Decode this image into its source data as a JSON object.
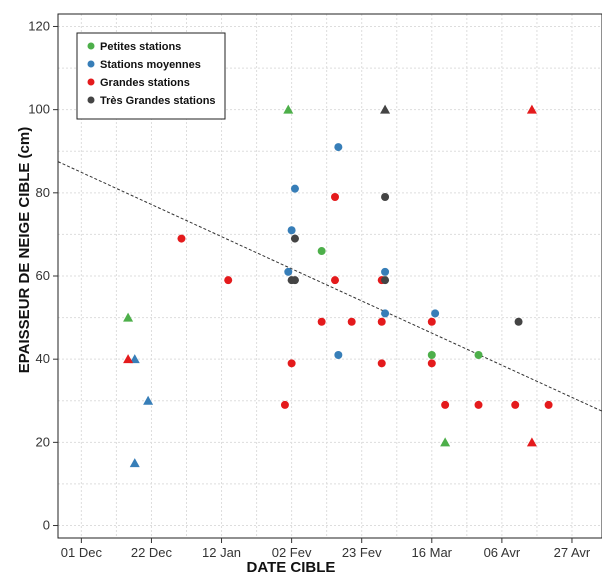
{
  "chart_data": {
    "type": "scatter",
    "xlabel": "DATE CIBLE",
    "ylabel": "EPAISSEUR DE NEIGE CIBLE (cm)",
    "ylim": [
      -3,
      123
    ],
    "xlim": [
      "2020-11-24",
      "2021-05-06"
    ],
    "grid": true,
    "legend_position": "top-left",
    "x_ticks": [
      {
        "date": "2020-12-01",
        "label": "01 Dec"
      },
      {
        "date": "2020-12-22",
        "label": "22 Dec"
      },
      {
        "date": "2021-01-12",
        "label": "12 Jan"
      },
      {
        "date": "2021-02-02",
        "label": "02 Fev"
      },
      {
        "date": "2021-02-23",
        "label": "23 Fev"
      },
      {
        "date": "2021-03-16",
        "label": "16 Mar"
      },
      {
        "date": "2021-04-06",
        "label": "06 Avr"
      },
      {
        "date": "2021-04-27",
        "label": "27 Avr"
      }
    ],
    "y_ticks": [
      0,
      20,
      40,
      60,
      80,
      100,
      120
    ],
    "trendline": {
      "from": [
        "2020-11-24",
        87.5
      ],
      "to": [
        "2021-05-06",
        27.5
      ],
      "style": "dashed"
    },
    "series": [
      {
        "name": "Petites stations",
        "color": "#4daf4a",
        "points": [
          {
            "date": "2020-12-15",
            "y": 50,
            "marker": "triangle"
          },
          {
            "date": "2021-02-01",
            "y": 100,
            "marker": "triangle"
          },
          {
            "date": "2021-02-11",
            "y": 66,
            "marker": "circle"
          },
          {
            "date": "2021-03-16",
            "y": 41,
            "marker": "circle"
          },
          {
            "date": "2021-03-20",
            "y": 20,
            "marker": "triangle"
          },
          {
            "date": "2021-03-30",
            "y": 41,
            "marker": "circle"
          }
        ]
      },
      {
        "name": "Stations moyennes",
        "color": "#377eb8",
        "points": [
          {
            "date": "2020-12-17",
            "y": 40,
            "marker": "triangle"
          },
          {
            "date": "2020-12-17",
            "y": 15,
            "marker": "triangle"
          },
          {
            "date": "2020-12-21",
            "y": 30,
            "marker": "triangle"
          },
          {
            "date": "2021-02-01",
            "y": 61,
            "marker": "circle"
          },
          {
            "date": "2021-02-02",
            "y": 71,
            "marker": "circle"
          },
          {
            "date": "2021-02-03",
            "y": 81,
            "marker": "circle"
          },
          {
            "date": "2021-02-16",
            "y": 91,
            "marker": "circle"
          },
          {
            "date": "2021-02-16",
            "y": 41,
            "marker": "circle"
          },
          {
            "date": "2021-03-02",
            "y": 61,
            "marker": "circle"
          },
          {
            "date": "2021-03-02",
            "y": 51,
            "marker": "circle"
          },
          {
            "date": "2021-03-17",
            "y": 51,
            "marker": "circle"
          }
        ]
      },
      {
        "name": "Grandes stations",
        "color": "#e41a1c",
        "points": [
          {
            "date": "2020-12-15",
            "y": 40,
            "marker": "triangle"
          },
          {
            "date": "2020-12-31",
            "y": 69,
            "marker": "circle"
          },
          {
            "date": "2021-01-14",
            "y": 59,
            "marker": "circle"
          },
          {
            "date": "2021-01-31",
            "y": 29,
            "marker": "circle"
          },
          {
            "date": "2021-02-02",
            "y": 39,
            "marker": "circle"
          },
          {
            "date": "2021-02-11",
            "y": 49,
            "marker": "circle"
          },
          {
            "date": "2021-02-15",
            "y": 79,
            "marker": "circle"
          },
          {
            "date": "2021-02-15",
            "y": 59,
            "marker": "circle"
          },
          {
            "date": "2021-02-20",
            "y": 49,
            "marker": "circle"
          },
          {
            "date": "2021-03-01",
            "y": 59,
            "marker": "circle"
          },
          {
            "date": "2021-03-01",
            "y": 49,
            "marker": "circle"
          },
          {
            "date": "2021-03-01",
            "y": 39,
            "marker": "circle"
          },
          {
            "date": "2021-03-16",
            "y": 49,
            "marker": "circle"
          },
          {
            "date": "2021-03-16",
            "y": 39,
            "marker": "circle"
          },
          {
            "date": "2021-03-20",
            "y": 29,
            "marker": "circle"
          },
          {
            "date": "2021-03-30",
            "y": 29,
            "marker": "circle"
          },
          {
            "date": "2021-04-10",
            "y": 29,
            "marker": "circle"
          },
          {
            "date": "2021-04-15",
            "y": 100,
            "marker": "triangle"
          },
          {
            "date": "2021-04-15",
            "y": 20,
            "marker": "triangle"
          },
          {
            "date": "2021-04-20",
            "y": 29,
            "marker": "circle"
          }
        ]
      },
      {
        "name": "Très Grandes stations",
        "color": "#444444",
        "points": [
          {
            "date": "2021-02-02",
            "y": 59,
            "marker": "circle"
          },
          {
            "date": "2021-02-03",
            "y": 69,
            "marker": "circle"
          },
          {
            "date": "2021-02-03",
            "y": 59,
            "marker": "circle"
          },
          {
            "date": "2021-03-02",
            "y": 100,
            "marker": "triangle"
          },
          {
            "date": "2021-03-02",
            "y": 79,
            "marker": "circle"
          },
          {
            "date": "2021-03-02",
            "y": 59,
            "marker": "circle"
          },
          {
            "date": "2021-04-11",
            "y": 49,
            "marker": "circle"
          }
        ]
      }
    ]
  }
}
